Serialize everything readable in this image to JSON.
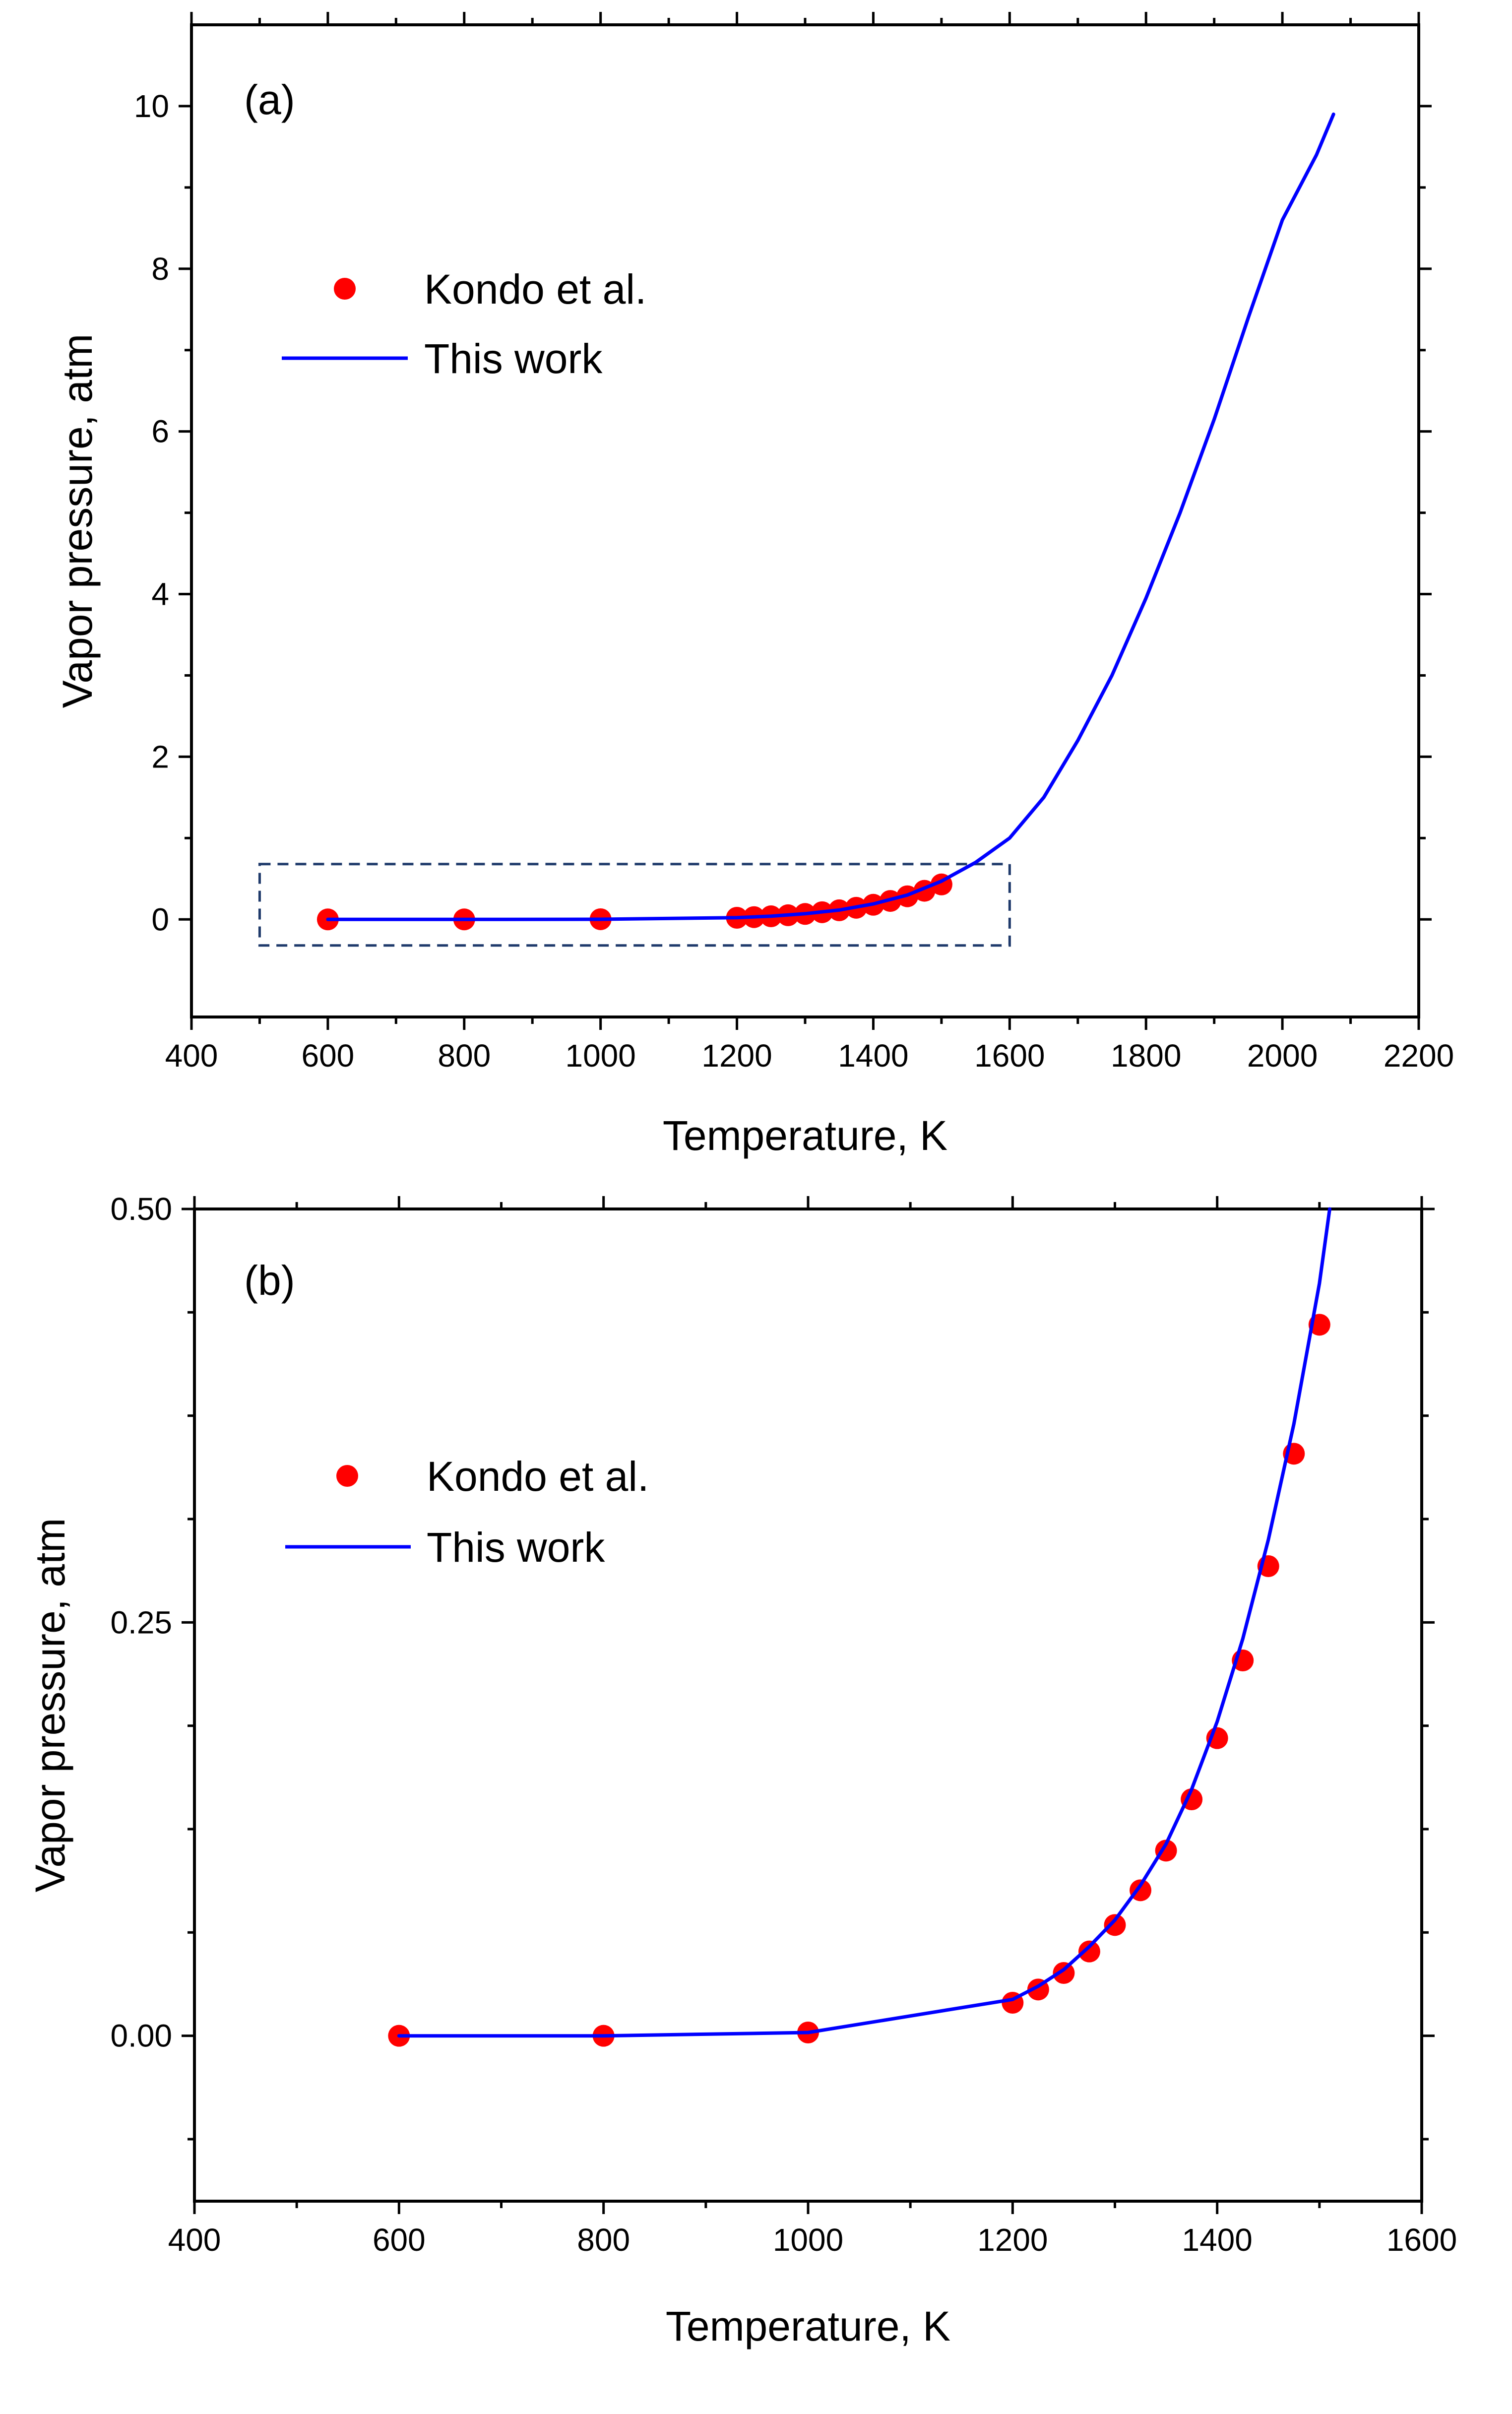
{
  "chart_data": [
    {
      "type": "scatter+line",
      "panel_label": "(a)",
      "xlabel": "Temperature, K",
      "ylabel": "Vapor pressure, atm",
      "xlim": [
        400,
        2200
      ],
      "ylim": [
        -1.2,
        11
      ],
      "x_ticks": [
        400,
        600,
        800,
        1000,
        1200,
        1400,
        1600,
        1800,
        2000,
        2200
      ],
      "x_tick_labels": [
        "400",
        "600",
        "800",
        "1000",
        "1200",
        "1400",
        "1600",
        "1800",
        "2000",
        "2200"
      ],
      "x_minor_ticks": [
        500,
        700,
        900,
        1100,
        1300,
        1500,
        1700,
        1900,
        2100
      ],
      "y_ticks": [
        0,
        2,
        4,
        6,
        8,
        10
      ],
      "y_tick_labels": [
        "0",
        "2",
        "4",
        "6",
        "8",
        "10"
      ],
      "y_minor_ticks": [
        1,
        3,
        5,
        7,
        9
      ],
      "legend": {
        "placement": "upper-left",
        "entries": [
          "Kondo et al.",
          "This work"
        ]
      },
      "zoom_box": {
        "x_range": [
          500,
          1600
        ],
        "y_range": [
          -0.32,
          0.68
        ],
        "style": "dashed"
      },
      "series": [
        {
          "name": "Kondo et al.",
          "kind": "markers",
          "color": "#ff0000",
          "x": [
            600,
            800,
            1000,
            1200,
            1225,
            1250,
            1275,
            1300,
            1325,
            1350,
            1375,
            1400,
            1425,
            1450,
            1475,
            1500
          ],
          "y": [
            0.0,
            0.0,
            0.002,
            0.02,
            0.028,
            0.038,
            0.051,
            0.067,
            0.088,
            0.112,
            0.143,
            0.18,
            0.227,
            0.284,
            0.352,
            0.43
          ]
        },
        {
          "name": "This work",
          "kind": "line",
          "color": "#0000ff",
          "x": [
            600,
            800,
            1000,
            1200,
            1250,
            1300,
            1350,
            1400,
            1450,
            1500,
            1550,
            1600,
            1650,
            1700,
            1750,
            1800,
            1850,
            1900,
            1950,
            2000,
            2050,
            2075
          ],
          "y": [
            0.0,
            0.0,
            0.002,
            0.022,
            0.04,
            0.07,
            0.115,
            0.19,
            0.3,
            0.47,
            0.7,
            1.0,
            1.5,
            2.2,
            3.0,
            3.95,
            5.0,
            6.15,
            7.4,
            8.6,
            9.4,
            9.9
          ]
        }
      ]
    },
    {
      "type": "scatter+line",
      "panel_label": "(b)",
      "xlabel": "Temperature, K",
      "ylabel": "Vapor pressure, atm",
      "xlim": [
        400,
        1600
      ],
      "ylim": [
        -0.1,
        0.5
      ],
      "x_ticks": [
        400,
        600,
        800,
        1000,
        1200,
        1400,
        1600
      ],
      "x_tick_labels": [
        "400",
        "600",
        "800",
        "1000",
        "1200",
        "1400",
        "1600"
      ],
      "x_minor_ticks": [
        500,
        700,
        900,
        1100,
        1300,
        1500
      ],
      "y_ticks": [
        0,
        0.25,
        0.5
      ],
      "y_tick_labels": [
        "0.00",
        "0.25",
        "0.50"
      ],
      "y_minor_ticks": [
        -0.0625,
        0.0625,
        0.125,
        0.1875,
        0.3125,
        0.375,
        0.4375
      ],
      "legend": {
        "placement": "upper-left",
        "entries": [
          "Kondo et al.",
          "This work"
        ]
      },
      "series": [
        {
          "name": "Kondo et al.",
          "kind": "markers",
          "color": "#ff0000",
          "x": [
            600,
            800,
            1000,
            1200,
            1225,
            1250,
            1275,
            1300,
            1325,
            1350,
            1375,
            1400,
            1425,
            1450,
            1475,
            1500
          ],
          "y": [
            0.0,
            0.0,
            0.002,
            0.02,
            0.028,
            0.038,
            0.051,
            0.067,
            0.088,
            0.112,
            0.143,
            0.18,
            0.227,
            0.284,
            0.352,
            0.43
          ]
        },
        {
          "name": "This work",
          "kind": "line",
          "color": "#0000ff",
          "x": [
            600,
            800,
            1000,
            1200,
            1225,
            1250,
            1275,
            1300,
            1325,
            1350,
            1375,
            1400,
            1425,
            1450,
            1475,
            1500,
            1510
          ],
          "y": [
            0.0,
            0.0,
            0.002,
            0.022,
            0.03,
            0.04,
            0.054,
            0.07,
            0.091,
            0.116,
            0.149,
            0.19,
            0.24,
            0.3,
            0.37,
            0.455,
            0.5
          ]
        }
      ]
    }
  ]
}
